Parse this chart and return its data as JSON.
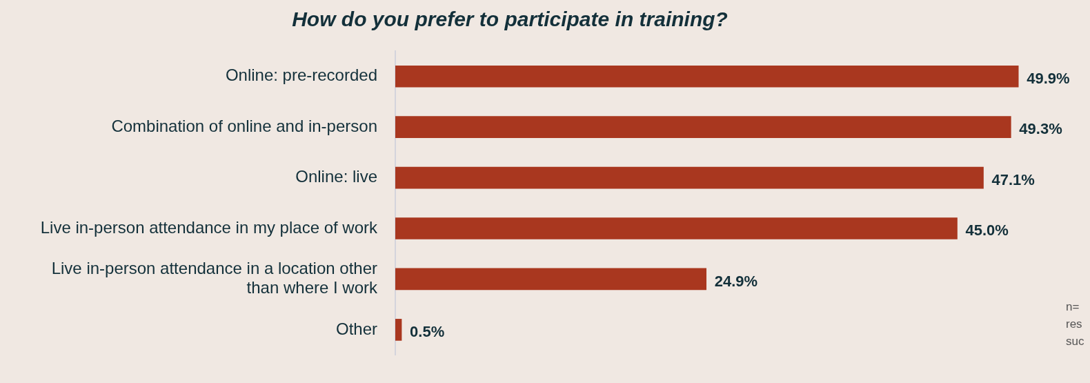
{
  "chart_data": {
    "type": "bar",
    "orientation": "horizontal",
    "title": "How do you prefer to participate in training?",
    "categories": [
      "Online: pre-recorded",
      "Combination of online and in-person",
      "Online: live",
      "Live in-person attendance in my place of work",
      "Live in-person attendance in a location other than where I work",
      "Other"
    ],
    "values": [
      49.9,
      49.3,
      47.1,
      45.0,
      24.9,
      0.5
    ],
    "value_labels": [
      "49.9%",
      "49.3%",
      "47.1%",
      "45.0%",
      "24.9%",
      "0.5%"
    ],
    "color": "#a9371f",
    "legend": false,
    "annotations": [
      "n=",
      "res",
      "suc"
    ]
  }
}
